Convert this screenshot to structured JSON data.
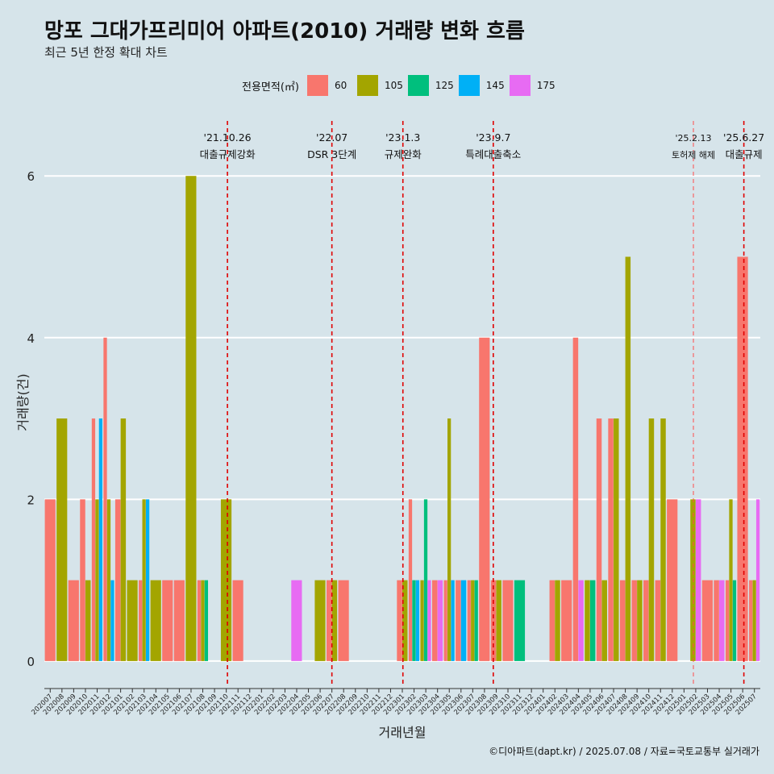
{
  "header": {
    "title": "망포 그대가프리미어 아파트(2010) 거래량 변화 흐름",
    "subtitle": "최근 5년 한정 확대 차트"
  },
  "legend": {
    "title": "전용면적(㎡)",
    "items": [
      {
        "label": "60",
        "color": "#f8766d"
      },
      {
        "label": "105",
        "color": "#a3a500"
      },
      {
        "label": "125",
        "color": "#00bf7d"
      },
      {
        "label": "145",
        "color": "#00b0f6"
      },
      {
        "label": "175",
        "color": "#e76bf3"
      }
    ]
  },
  "caption": "©디아파트(dapt.kr) / 2025.07.08 / 자료=국토교통부 실거래가",
  "chart_data": {
    "type": "bar",
    "stacking": "dodge",
    "xlabel": "거래년월",
    "ylabel": "거래량(건)",
    "ylim": [
      -0.3,
      6.7
    ],
    "yticks": [
      0,
      2,
      4,
      6
    ],
    "categories": [
      "202007",
      "202008",
      "202009",
      "202010",
      "202011",
      "202012",
      "202101",
      "202102",
      "202103",
      "202104",
      "202105",
      "202106",
      "202107",
      "202108",
      "202109",
      "202110",
      "202111",
      "202112",
      "202201",
      "202202",
      "202203",
      "202204",
      "202205",
      "202206",
      "202207",
      "202208",
      "202209",
      "202210",
      "202211",
      "202212",
      "202301",
      "202302",
      "202303",
      "202304",
      "202305",
      "202306",
      "202307",
      "202308",
      "202309",
      "202310",
      "202311",
      "202312",
      "202401",
      "202402",
      "202403",
      "202404",
      "202405",
      "202406",
      "202407",
      "202408",
      "202409",
      "202410",
      "202411",
      "202412",
      "202501",
      "202502",
      "202503",
      "202504",
      "202505",
      "202506",
      "202507"
    ],
    "series": [
      {
        "name": "60",
        "values": [
          2,
          0,
          1,
          2,
          3,
          4,
          2,
          0,
          1,
          0,
          1,
          1,
          0,
          1,
          0,
          0,
          1,
          0,
          0,
          0,
          0,
          0,
          0,
          0,
          1,
          1,
          0,
          0,
          0,
          0,
          1,
          2,
          0,
          1,
          1,
          1,
          1,
          4,
          1,
          1,
          0,
          0,
          0,
          1,
          1,
          4,
          0,
          3,
          3,
          1,
          1,
          1,
          1,
          2,
          0,
          0,
          1,
          1,
          1,
          5,
          1
        ]
      },
      {
        "name": "105",
        "values": [
          0,
          3,
          0,
          1,
          2,
          2,
          3,
          1,
          2,
          1,
          0,
          0,
          6,
          1,
          0,
          2,
          0,
          0,
          0,
          0,
          0,
          0,
          0,
          1,
          1,
          0,
          0,
          0,
          0,
          0,
          1,
          0,
          1,
          0,
          3,
          0,
          1,
          0,
          1,
          0,
          0,
          0,
          0,
          1,
          0,
          0,
          1,
          1,
          3,
          5,
          1,
          3,
          3,
          0,
          0,
          2,
          0,
          0,
          2,
          0,
          1
        ]
      },
      {
        "name": "125",
        "values": [
          0,
          0,
          0,
          0,
          0,
          0,
          0,
          0,
          0,
          0,
          0,
          0,
          0,
          1,
          0,
          0,
          0,
          0,
          0,
          0,
          0,
          0,
          0,
          0,
          0,
          0,
          0,
          0,
          0,
          0,
          0,
          1,
          2,
          0,
          0,
          0,
          1,
          0,
          0,
          0,
          1,
          0,
          0,
          0,
          0,
          0,
          1,
          0,
          0,
          0,
          0,
          0,
          0,
          0,
          0,
          0,
          0,
          0,
          1,
          0,
          0
        ]
      },
      {
        "name": "145",
        "values": [
          0,
          0,
          0,
          0,
          3,
          1,
          0,
          0,
          2,
          0,
          0,
          0,
          0,
          0,
          0,
          0,
          0,
          0,
          0,
          0,
          0,
          0,
          0,
          0,
          0,
          0,
          0,
          0,
          0,
          0,
          0,
          1,
          0,
          0,
          1,
          1,
          0,
          0,
          0,
          0,
          0,
          0,
          0,
          0,
          0,
          0,
          0,
          0,
          0,
          0,
          0,
          0,
          0,
          0,
          0,
          0,
          0,
          0,
          0,
          0,
          0
        ]
      },
      {
        "name": "175",
        "values": [
          0,
          0,
          0,
          0,
          0,
          0,
          0,
          0,
          0,
          0,
          0,
          0,
          0,
          0,
          0,
          0,
          0,
          0,
          0,
          0,
          0,
          1,
          0,
          0,
          0,
          0,
          0,
          0,
          0,
          0,
          0,
          0,
          1,
          1,
          0,
          0,
          0,
          0,
          0,
          0,
          0,
          0,
          0,
          0,
          0,
          1,
          0,
          0,
          0,
          0,
          0,
          0,
          0,
          0,
          0,
          2,
          0,
          1,
          0,
          0,
          2
        ]
      }
    ],
    "annotations": [
      {
        "x": "202110",
        "date": "'21.10.26",
        "label": "대출규제강화",
        "offset": 0.1,
        "style": "dashed"
      },
      {
        "x": "202207",
        "date": "'22.07",
        "label": "DSR 3단계",
        "offset": 0.0,
        "style": "dashed"
      },
      {
        "x": "202301",
        "date": "'23.1.3",
        "label": "규제완화",
        "offset": 0.05,
        "style": "dashed"
      },
      {
        "x": "202309",
        "date": "'23.9.7",
        "label": "특례대출축소",
        "offset": -0.25,
        "style": "dashed"
      },
      {
        "x": "202502",
        "date": "'25.2.13",
        "label": "토허제 해제",
        "offset": -0.2,
        "style": "thin-dashed"
      },
      {
        "x": "202506",
        "date": "'25.6.27",
        "label": "대출규제",
        "offset": 0.1,
        "style": "dashed"
      }
    ]
  }
}
